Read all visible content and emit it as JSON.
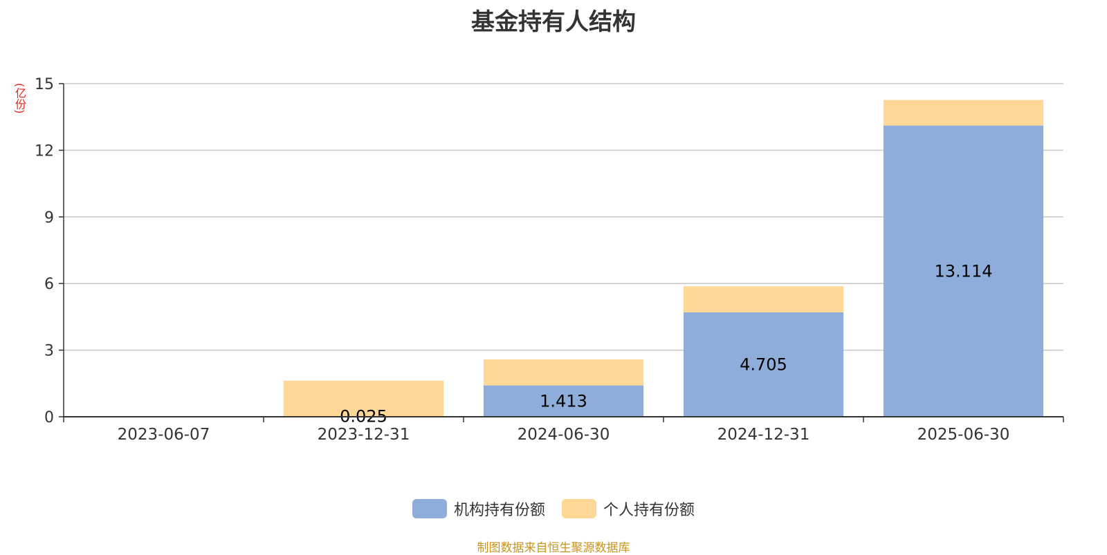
{
  "title": "基金持有人结构",
  "footer": "制图数据来自恒生聚源数据库",
  "colors": {
    "institution": "#8eadda",
    "individual": "#ffd898",
    "grid": "#c8c8c8",
    "axis": "#333333",
    "unit": "#e8211e",
    "footer": "#c8941e"
  },
  "chart_data": {
    "type": "bar",
    "stacked": true,
    "ylabel": "(亿份)",
    "ylim": [
      0,
      15
    ],
    "yticks": [
      0,
      3,
      6,
      9,
      12,
      15
    ],
    "grid": true,
    "legend_position": "bottom-center",
    "categories": [
      "2023-06-07",
      "2023-12-31",
      "2024-06-30",
      "2024-12-31",
      "2025-06-30"
    ],
    "series": [
      {
        "name": "机构持有份额",
        "values": [
          0,
          0.025,
          1.413,
          4.705,
          13.114
        ],
        "labels": [
          "",
          "0.025",
          "1.413",
          "4.705",
          "13.114"
        ]
      },
      {
        "name": "个人持有份额",
        "values": [
          0,
          1.6,
          1.17,
          1.17,
          1.15
        ],
        "labels": [
          "",
          "",
          "",
          "",
          ""
        ]
      }
    ]
  }
}
